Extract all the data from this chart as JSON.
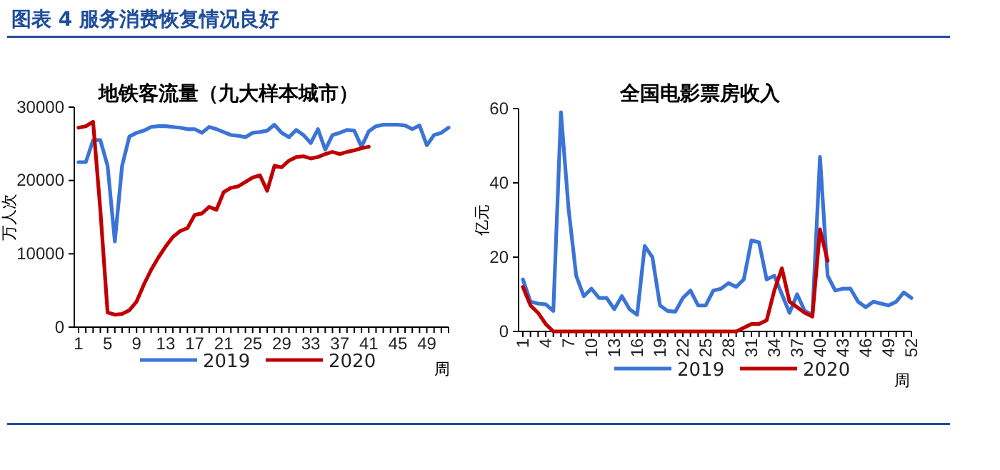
{
  "chart_data": [
    {
      "type": "line",
      "title": "地铁客流量（九大样本城市）",
      "ylabel": "万人次",
      "xlabel": "周",
      "annotations": [
        "图表 4 服务消费恢复情况良好"
      ],
      "categories": [
        "1",
        null,
        null,
        null,
        "5",
        null,
        null,
        null,
        "9",
        null,
        null,
        null,
        "13",
        null,
        null,
        null,
        "17",
        null,
        null,
        null,
        "21",
        null,
        null,
        null,
        "25",
        null,
        null,
        null,
        "29",
        null,
        null,
        null,
        "33",
        null,
        null,
        null,
        "37",
        null,
        null,
        null,
        "41",
        null,
        null,
        null,
        "45",
        null,
        null,
        null,
        "49",
        null,
        null,
        null
      ],
      "ylim": [
        0,
        30000
      ],
      "yticks": [
        0,
        10000,
        20000,
        30000
      ],
      "legend": "bottom",
      "grid": false,
      "series": [
        {
          "name": "2019",
          "color": "#3b74d6",
          "values": [
            22500,
            22500,
            25500,
            25500,
            22000,
            11700,
            22000,
            26000,
            26500,
            26800,
            27300,
            27400,
            27400,
            27300,
            27200,
            27000,
            27000,
            26500,
            27300,
            27000,
            26600,
            26200,
            26100,
            25900,
            26500,
            26600,
            26800,
            27600,
            26500,
            25900,
            26900,
            26200,
            25100,
            27000,
            24200,
            26200,
            26500,
            26900,
            26800,
            24600,
            26700,
            27400,
            27600,
            27600,
            27600,
            27500,
            27000,
            27500,
            24800,
            26200,
            26500,
            27200
          ]
        },
        {
          "name": "2020",
          "color": "#c00000",
          "values": [
            27200,
            27400,
            28000,
            16000,
            2000,
            1700,
            1800,
            2300,
            3500,
            5800,
            7800,
            9500,
            11000,
            12300,
            13100,
            13500,
            15300,
            15500,
            16400,
            16000,
            18400,
            19000,
            19200,
            19800,
            20400,
            20700,
            18600,
            22000,
            21800,
            22700,
            23200,
            23300,
            23000,
            23200,
            23600,
            23900,
            23600,
            23900,
            24100,
            24400,
            24600,
            null,
            null,
            null,
            null,
            null,
            null,
            null,
            null,
            null,
            null,
            null
          ]
        }
      ]
    },
    {
      "type": "line",
      "title": "全国电影票房收入",
      "ylabel": "亿元",
      "xlabel": "周",
      "categories": [
        "1",
        null,
        null,
        "4",
        null,
        null,
        "7",
        null,
        null,
        "10",
        null,
        null,
        "13",
        null,
        null,
        "16",
        null,
        null,
        "19",
        null,
        null,
        "22",
        null,
        null,
        "25",
        null,
        null,
        "28",
        null,
        null,
        "31",
        null,
        null,
        "34",
        null,
        null,
        "37",
        null,
        null,
        "40",
        null,
        null,
        "43",
        null,
        null,
        "46",
        null,
        null,
        "49",
        null,
        null,
        "52"
      ],
      "ylim": [
        0,
        60
      ],
      "yticks": [
        0,
        20,
        40,
        60
      ],
      "legend": "bottom",
      "grid": false,
      "series": [
        {
          "name": "2019",
          "color": "#3b74d6",
          "values": [
            14,
            8,
            7.5,
            7.3,
            5.5,
            59,
            33,
            15,
            9.5,
            11.5,
            9,
            9,
            6,
            9.5,
            6,
            4.5,
            23,
            20,
            7,
            5.5,
            5.3,
            9,
            11,
            7,
            7,
            11,
            11.5,
            13,
            12,
            14,
            24.5,
            24,
            14,
            15,
            10,
            5,
            10,
            5.5,
            4.5,
            47,
            15,
            11,
            11.5,
            11.5,
            8,
            6.5,
            8,
            7.5,
            7,
            8,
            10.5,
            9
          ]
        },
        {
          "name": "2020",
          "color": "#c00000",
          "values": [
            12,
            7,
            5,
            2,
            0,
            0,
            0,
            0,
            0,
            0,
            0,
            0,
            0,
            0,
            0,
            0,
            0,
            0,
            0,
            0,
            0,
            0,
            0,
            0,
            0,
            0,
            0,
            0,
            0,
            1,
            2,
            2,
            3,
            11,
            17,
            8,
            6.5,
            5,
            4,
            27.5,
            19,
            null,
            null,
            null,
            null,
            null,
            null,
            null,
            null,
            null,
            null,
            null
          ]
        }
      ]
    }
  ]
}
